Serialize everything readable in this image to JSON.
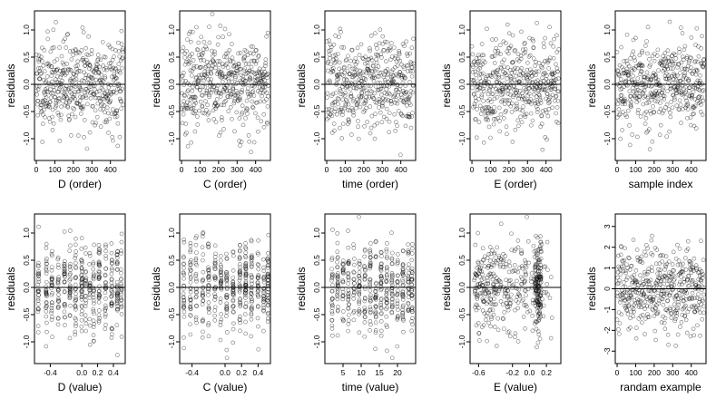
{
  "chart_data": [
    {
      "type": "scatter",
      "xlabel": "D (order)",
      "ylabel": "residuals",
      "xlim": [
        -10,
        480
      ],
      "ylim": [
        -1.4,
        1.35
      ],
      "xticks": [
        0,
        100,
        200,
        300,
        400
      ],
      "yticks": [
        -1.0,
        -0.5,
        0.0,
        0.5,
        1.0
      ],
      "ytick_labels": [
        "-1.0",
        "-0.5",
        "0.0",
        "0.5",
        "1.0"
      ],
      "hline": 0,
      "n": 460,
      "seed": 11,
      "gen": "uniform_x",
      "spread": 0.42
    },
    {
      "type": "scatter",
      "xlabel": "C (order)",
      "ylabel": "residuals",
      "xlim": [
        -10,
        480
      ],
      "ylim": [
        -1.4,
        1.35
      ],
      "xticks": [
        0,
        100,
        200,
        300,
        400
      ],
      "yticks": [
        -1.0,
        -0.5,
        0.0,
        0.5,
        1.0
      ],
      "ytick_labels": [
        "-1.0",
        "-0.5",
        "0.0",
        "0.5",
        "1.0"
      ],
      "hline": 0,
      "n": 460,
      "seed": 23,
      "gen": "uniform_x",
      "spread": 0.42
    },
    {
      "type": "scatter",
      "xlabel": "time (order)",
      "ylabel": "residuals",
      "xlim": [
        -10,
        480
      ],
      "ylim": [
        -1.4,
        1.35
      ],
      "xticks": [
        0,
        100,
        200,
        300,
        400
      ],
      "yticks": [
        -1.0,
        -0.5,
        0.0,
        0.5,
        1.0
      ],
      "ytick_labels": [
        "-1.0",
        "-0.5",
        "0.0",
        "0.5",
        "1.0"
      ],
      "hline": 0,
      "n": 460,
      "seed": 37,
      "gen": "uniform_x",
      "spread": 0.42
    },
    {
      "type": "scatter",
      "xlabel": "E (order)",
      "ylabel": "residuals",
      "xlim": [
        -10,
        480
      ],
      "ylim": [
        -1.4,
        1.35
      ],
      "xticks": [
        0,
        100,
        200,
        300,
        400
      ],
      "yticks": [
        -1.0,
        -0.5,
        0.0,
        0.5,
        1.0
      ],
      "ytick_labels": [
        "-1.0",
        "-0.5",
        "0.0",
        "0.5",
        "1.0"
      ],
      "hline": 0,
      "n": 460,
      "seed": 41,
      "gen": "uniform_x",
      "spread": 0.42
    },
    {
      "type": "scatter",
      "xlabel": "sample index",
      "ylabel": "residuals",
      "xlim": [
        -10,
        480
      ],
      "ylim": [
        -1.4,
        1.35
      ],
      "xticks": [
        0,
        100,
        200,
        300,
        400
      ],
      "yticks": [
        -1.0,
        -0.5,
        0.0,
        0.5,
        1.0
      ],
      "ytick_labels": [
        "-1.0",
        "-0.5",
        "0.0",
        "0.5",
        "1.0"
      ],
      "hline": 0,
      "n": 460,
      "seed": 53,
      "gen": "uniform_x",
      "spread": 0.42
    },
    {
      "type": "scatter",
      "xlabel": "D (value)",
      "ylabel": "residuals",
      "xlim": [
        -0.6,
        0.55
      ],
      "ylim": [
        -1.4,
        1.35
      ],
      "xticks": [
        -0.4,
        0.0,
        0.2,
        0.4
      ],
      "xtick_labels": [
        "-0.4",
        "0.0",
        "0.2",
        "0.4"
      ],
      "yticks": [
        -1.0,
        -0.5,
        0.0,
        0.5,
        1.0
      ],
      "ytick_labels": [
        "-1.0",
        "-0.5",
        "0.0",
        "0.5",
        "1.0"
      ],
      "hline": 0,
      "n": 460,
      "seed": 61,
      "gen": "clustered_x",
      "clusters": [
        -0.55,
        -0.45,
        -0.38,
        -0.3,
        -0.22,
        -0.15,
        -0.08,
        0.0,
        0.05,
        0.1,
        0.15,
        0.22,
        0.3,
        0.38,
        0.45,
        0.5
      ],
      "spread": 0.42
    },
    {
      "type": "scatter",
      "xlabel": "C (value)",
      "ylabel": "residuals",
      "xlim": [
        -0.55,
        0.55
      ],
      "ylim": [
        -1.4,
        1.35
      ],
      "xticks": [
        -0.4,
        0.0,
        0.2,
        0.4
      ],
      "xtick_labels": [
        "-0.4",
        "0.0",
        "0.2",
        "0.4"
      ],
      "yticks": [
        -1.0,
        -0.5,
        0.0,
        0.5,
        1.0
      ],
      "ytick_labels": [
        "-1.0",
        "-0.5",
        "0.0",
        "0.5",
        "1.0"
      ],
      "hline": 0,
      "n": 460,
      "seed": 71,
      "gen": "clustered_x",
      "clusters": [
        -0.5,
        -0.42,
        -0.35,
        -0.27,
        -0.2,
        -0.12,
        -0.05,
        0.02,
        0.1,
        0.18,
        0.25,
        0.32,
        0.4,
        0.47,
        0.52
      ],
      "spread": 0.42
    },
    {
      "type": "scatter",
      "xlabel": "time (value)",
      "ylabel": "residuals",
      "xlim": [
        0,
        25
      ],
      "ylim": [
        -1.4,
        1.35
      ],
      "xticks": [
        5,
        10,
        15,
        20
      ],
      "xtick_labels": [
        "5",
        "10",
        "15",
        "20"
      ],
      "yticks": [
        -1.0,
        -0.5,
        0.0,
        0.5,
        1.0
      ],
      "ytick_labels": [
        "-1.0",
        "-0.5",
        "0.0",
        "0.5",
        "1.0"
      ],
      "hline": 0,
      "n": 460,
      "seed": 83,
      "gen": "clustered_x",
      "clusters": [
        2,
        3.5,
        5,
        6.5,
        8,
        9.5,
        11,
        12.5,
        14,
        15.5,
        17,
        18.5,
        20,
        21.5,
        23,
        24
      ],
      "spread": 0.42
    },
    {
      "type": "scatter",
      "xlabel": "E (value)",
      "ylabel": "residuals",
      "xlim": [
        -0.7,
        0.37
      ],
      "ylim": [
        -1.4,
        1.35
      ],
      "xticks": [
        -0.6,
        -0.2,
        0.0,
        0.2
      ],
      "xtick_labels": [
        "-0.6",
        "-0.2",
        "0.0",
        "0.2"
      ],
      "yticks": [
        -1.0,
        -0.5,
        0.0,
        0.5,
        1.0
      ],
      "ytick_labels": [
        "-1.0",
        "-0.5",
        "0.0",
        "0.5",
        "1.0"
      ],
      "hline": 0,
      "n": 460,
      "seed": 97,
      "gen": "skew_x",
      "spread": 0.42
    },
    {
      "type": "scatter",
      "xlabel": "randam example",
      "ylabel": "residuals",
      "xlim": [
        -10,
        480
      ],
      "ylim": [
        -3.6,
        3.6
      ],
      "xticks": [
        0,
        100,
        200,
        300,
        400
      ],
      "yticks": [
        -3,
        -2,
        -1,
        0,
        1,
        2,
        3
      ],
      "ytick_labels": [
        "-3",
        "-2",
        "-1",
        "0",
        "1",
        "2",
        "3"
      ],
      "hline": 0,
      "n": 460,
      "seed": 101,
      "gen": "uniform_x",
      "spread": 1.0
    }
  ]
}
